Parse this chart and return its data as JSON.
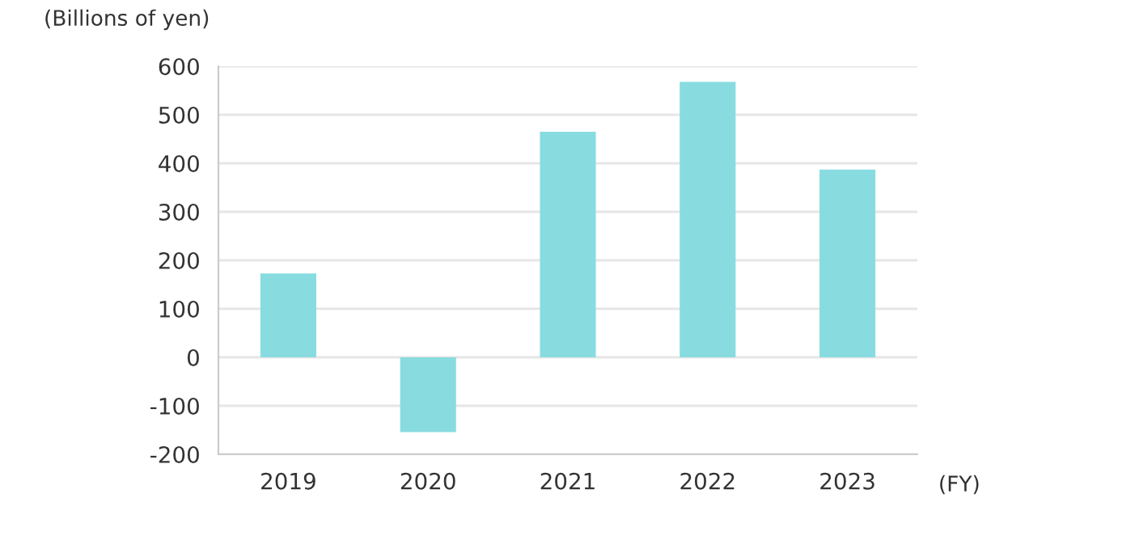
{
  "chart_data": {
    "type": "bar",
    "ylabel": "(Billions of yen)",
    "xlabel": "(FY)",
    "categories": [
      "2019",
      "2020",
      "2021",
      "2022",
      "2023"
    ],
    "values": [
      173,
      -154,
      465,
      568,
      387
    ],
    "color": "#88dce0",
    "ylim": [
      -200,
      600
    ],
    "yticks": [
      -200,
      -100,
      0,
      100,
      200,
      300,
      400,
      500,
      600
    ],
    "grid": "y"
  }
}
